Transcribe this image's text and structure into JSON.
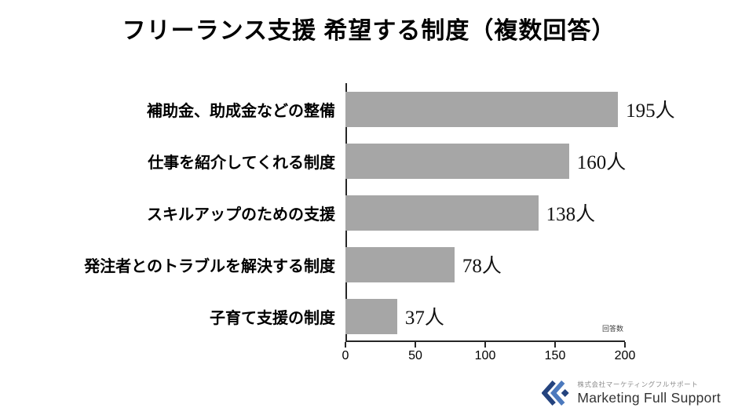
{
  "chart_data": {
    "type": "bar",
    "orientation": "horizontal",
    "title": "フリーランス支援 希望する制度（複数回答）",
    "categories": [
      "補助金、助成金などの整備",
      "仕事を紹介してくれる制度",
      "スキルアップのための支援",
      "発注者とのトラブルを解決する制度",
      "子育て支援の制度"
    ],
    "values": [
      195,
      160,
      138,
      78,
      37
    ],
    "value_suffix": "人",
    "xlabel": "回答数",
    "xlim": [
      0,
      200
    ],
    "x_ticks": [
      0,
      50,
      100,
      150,
      200
    ],
    "bar_color": "#a6a6a6",
    "axis_color": "#262626",
    "grid": false,
    "legend": false
  },
  "footer": {
    "company_small": "株式会社マーケティングフルサポート",
    "company_name": "Marketing Full Support",
    "logo_colors": {
      "primary": "#24437e",
      "secondary": "#4c79bd"
    }
  }
}
